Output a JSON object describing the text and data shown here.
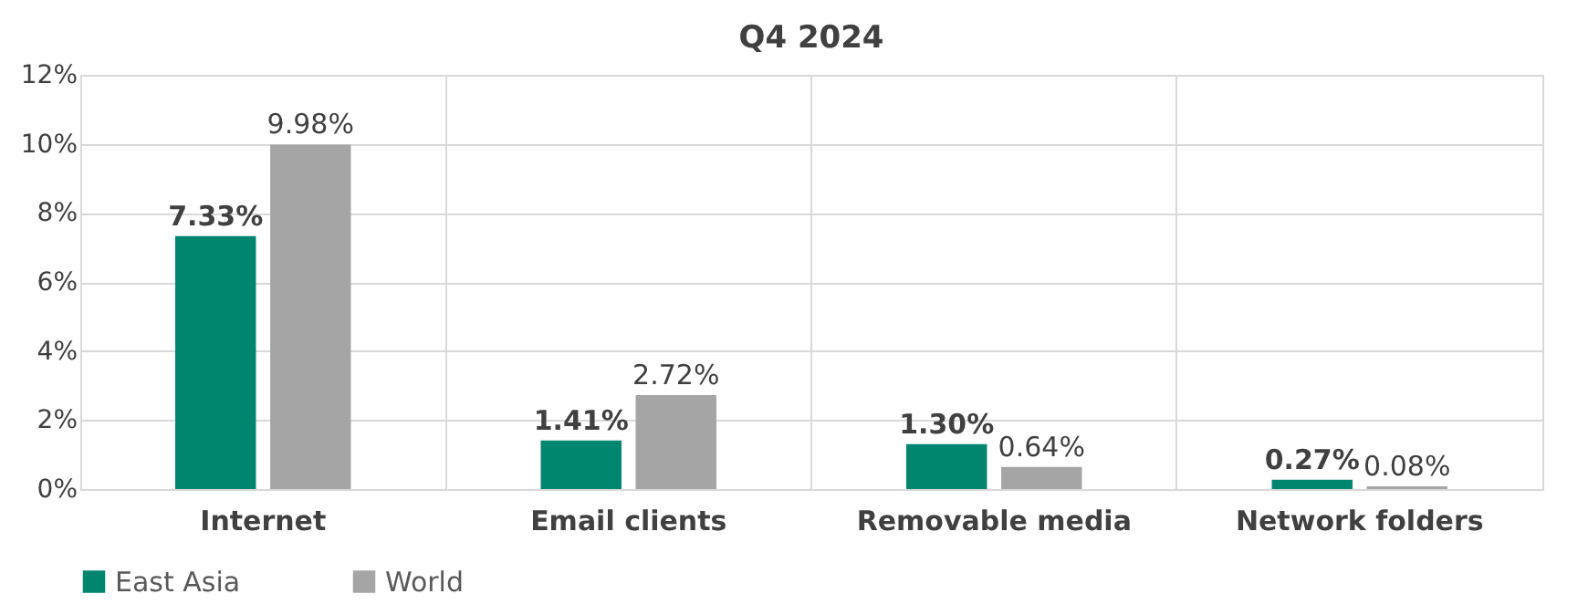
{
  "chart_data": {
    "type": "bar",
    "title": "Q4 2024",
    "categories": [
      "Internet",
      "Email clients",
      "Removable media",
      "Network folders"
    ],
    "series": [
      {
        "name": "East Asia",
        "color": "#00856f",
        "values": [
          7.33,
          1.41,
          1.3,
          0.27
        ],
        "value_labels": [
          "7.33%",
          "1.41%",
          "1.30%",
          "0.27%"
        ]
      },
      {
        "name": "World",
        "color": "#a5a5a5",
        "values": [
          9.98,
          2.72,
          0.64,
          0.08
        ],
        "value_labels": [
          "9.98%",
          "2.72%",
          "0.64%",
          "0.08%"
        ]
      }
    ],
    "ylim": [
      0,
      12
    ],
    "yticks": [
      {
        "value": 0,
        "label": "0%"
      },
      {
        "value": 2,
        "label": "2%"
      },
      {
        "value": 4,
        "label": "4%"
      },
      {
        "value": 6,
        "label": "6%"
      },
      {
        "value": 8,
        "label": "8%"
      },
      {
        "value": 10,
        "label": "10%"
      },
      {
        "value": 12,
        "label": "12%"
      }
    ],
    "grid": true,
    "legend": "bottom"
  }
}
